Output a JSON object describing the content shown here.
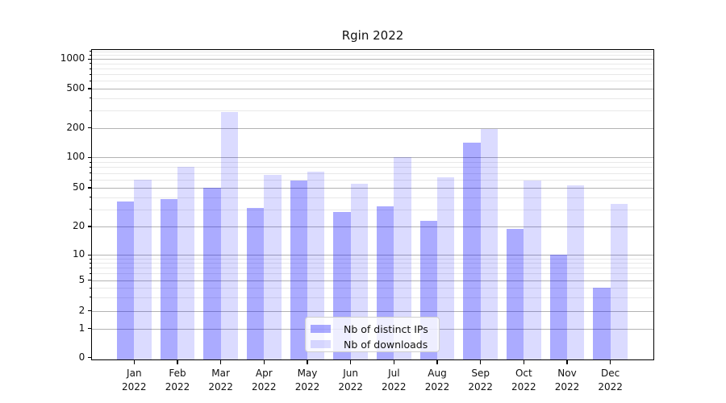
{
  "title": "Rgin 2022",
  "chart_data": {
    "type": "bar",
    "title": "Rgin 2022",
    "categories": [
      "Jan",
      "Feb",
      "Mar",
      "Apr",
      "May",
      "Jun",
      "Jul",
      "Aug",
      "Sep",
      "Oct",
      "Nov",
      "Dec"
    ],
    "year_label": "2022",
    "series": [
      {
        "name": "Nb of distinct IPs",
        "color": "rgba(0,0,255,0.33)",
        "values": [
          36,
          38,
          50,
          31,
          59,
          28,
          32,
          23,
          140,
          19,
          10,
          4
        ]
      },
      {
        "name": "Nb of downloads",
        "color": "rgba(0,0,255,0.14)",
        "values": [
          60,
          80,
          290,
          67,
          72,
          55,
          100,
          64,
          195,
          59,
          53,
          34
        ]
      }
    ],
    "xlabel": "",
    "ylabel": "",
    "yscale": "log-like with 0 baseline",
    "y_ticks": [
      0,
      1,
      2,
      5,
      10,
      20,
      50,
      100,
      200,
      500,
      1000
    ],
    "y_minor_ticks": [
      3,
      4,
      6,
      7,
      8,
      9,
      30,
      40,
      60,
      70,
      80,
      90,
      300,
      400,
      600,
      700,
      800,
      900,
      1100,
      1200
    ],
    "ylim": [
      0,
      1270
    ],
    "grid": true,
    "legend_position": "lower center"
  },
  "colors": {
    "bar_dark": "rgba(0,0,255,0.33)",
    "bar_light": "rgba(0,0,255,0.14)",
    "grid_major": "#b3b3b3",
    "grid_minor": "#e8e8e8",
    "axis": "#000000",
    "background": "#ffffff"
  }
}
